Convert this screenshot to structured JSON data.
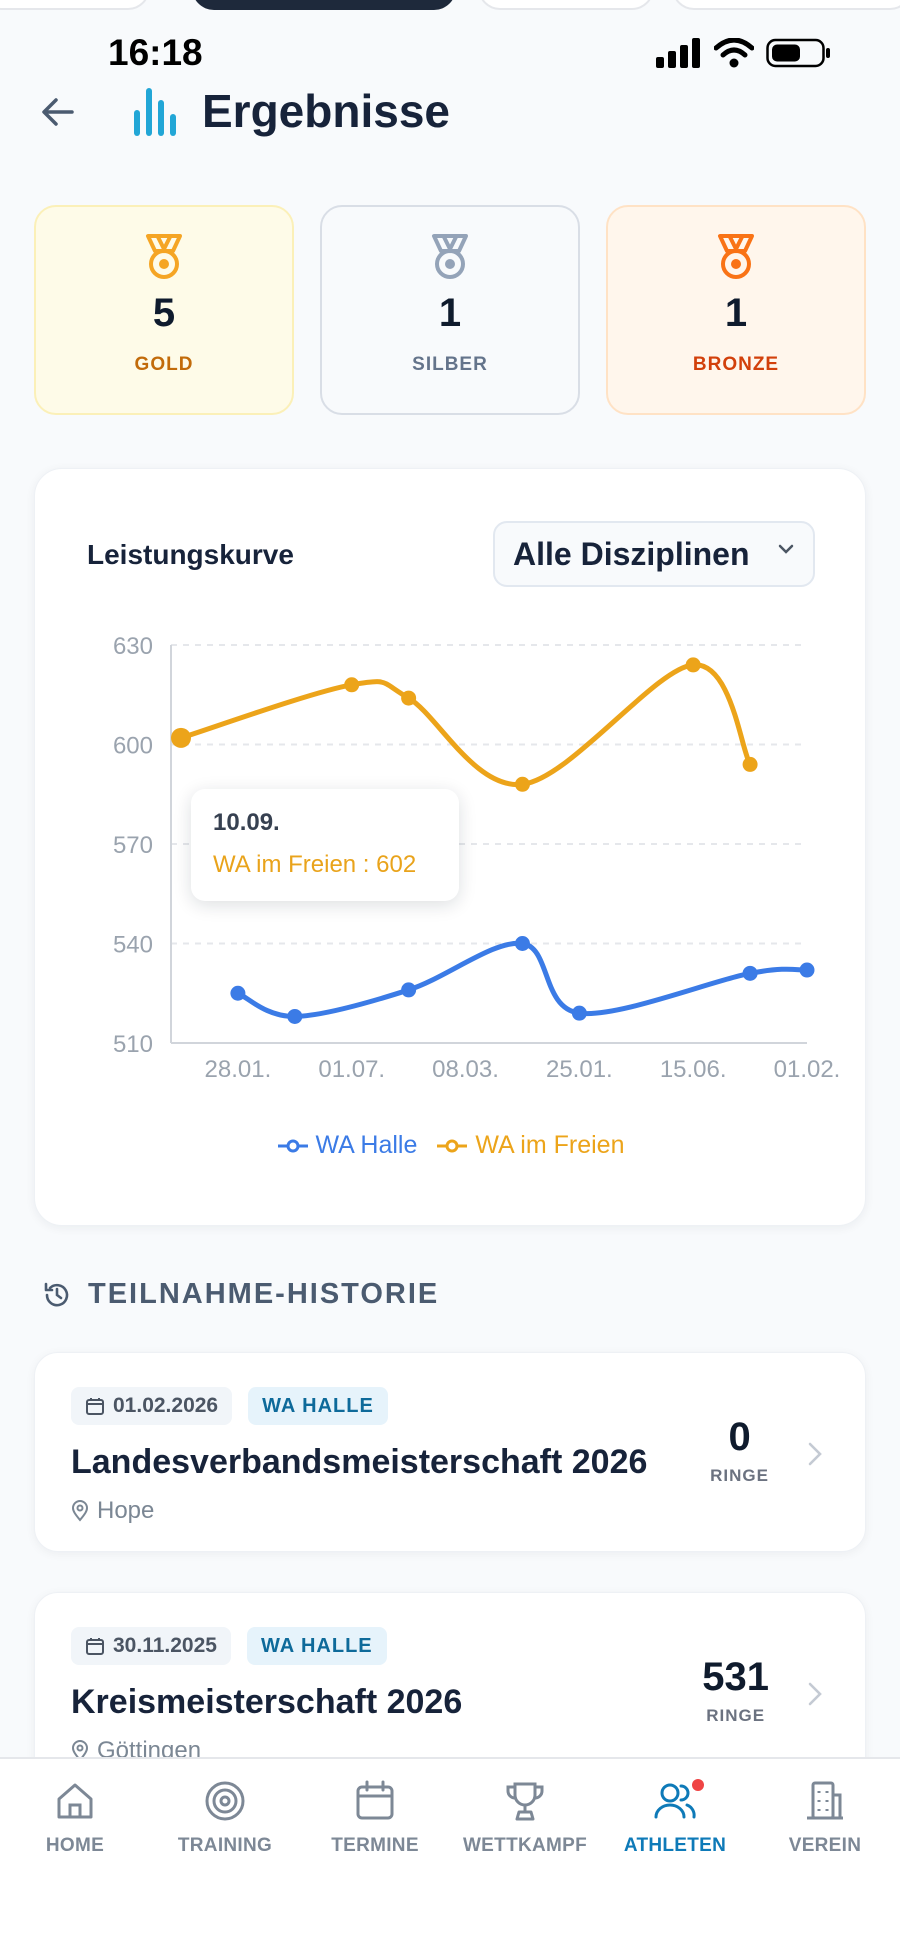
{
  "status_bar": {
    "time": "16:18"
  },
  "header": {
    "title": "Ergebnisse"
  },
  "medals": [
    {
      "label": "GOLD",
      "count": "5",
      "color": "#f5a524"
    },
    {
      "label": "SILBER",
      "count": "1",
      "color": "#94a3b8"
    },
    {
      "label": "BRONZE",
      "count": "1",
      "color": "#f97316"
    }
  ],
  "chart_card": {
    "title": "Leistungskurve",
    "dropdown_value": "Alle Disziplinen",
    "tooltip": {
      "date": "10.09.",
      "text": "WA im Freien : 602"
    }
  },
  "chart_data": {
    "type": "line",
    "y_ticks": [
      630,
      600,
      570,
      540,
      510
    ],
    "ylim": [
      510,
      630
    ],
    "x_tick_labels": [
      "28.01.",
      "01.07.",
      "08.03.",
      "25.01.",
      "15.06.",
      "01.02."
    ],
    "grid": true,
    "legend_position": "bottom",
    "series": [
      {
        "name": "WA Halle",
        "color": "#3b7be6",
        "points": [
          [
            1,
            525
          ],
          [
            2,
            518
          ],
          [
            4,
            526
          ],
          [
            6,
            540
          ],
          [
            7,
            519
          ],
          [
            10,
            531
          ],
          [
            11,
            532
          ]
        ]
      },
      {
        "name": "WA im Freien",
        "color": "#eca41a",
        "points": [
          [
            0,
            602
          ],
          [
            3,
            618
          ],
          [
            4,
            614
          ],
          [
            6,
            588
          ],
          [
            9,
            624
          ],
          [
            10,
            594
          ]
        ]
      }
    ]
  },
  "history": {
    "section_title": "TEILNAHME-HISTORIE",
    "items": [
      {
        "date": "01.02.2026",
        "tag": "WA HALLE",
        "name": "Landesverbandsmeisterschaft 2026",
        "location": "Hope",
        "score": "0",
        "unit": "RINGE"
      },
      {
        "date": "30.11.2025",
        "tag": "WA HALLE",
        "name": "Kreismeisterschaft 2026",
        "location": "Göttingen",
        "score": "531",
        "unit": "RINGE"
      }
    ]
  },
  "bottom_nav": {
    "items": [
      {
        "label": "HOME",
        "icon": "home-icon"
      },
      {
        "label": "TRAINING",
        "icon": "target-icon"
      },
      {
        "label": "TERMINE",
        "icon": "calendar-icon"
      },
      {
        "label": "WETTKAMPF",
        "icon": "trophy-icon"
      },
      {
        "label": "ATHLETEN",
        "icon": "users-icon",
        "active": true
      },
      {
        "label": "VEREIN",
        "icon": "building-icon"
      }
    ]
  },
  "colors": {
    "accent": "#0e7ab8",
    "gold": "#f5a524",
    "silver": "#94a3b8",
    "bronze": "#f97316"
  }
}
